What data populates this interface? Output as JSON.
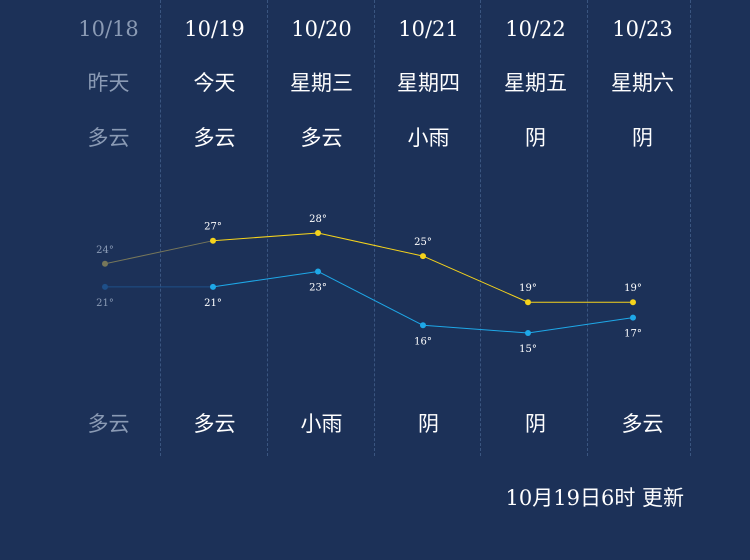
{
  "days": [
    {
      "date": "10/18",
      "weekday": "昨天",
      "day_weather": "多云",
      "night_weather": "多云",
      "high": 24,
      "low": 21,
      "past": true
    },
    {
      "date": "10/19",
      "weekday": "今天",
      "day_weather": "多云",
      "night_weather": "多云",
      "high": 27,
      "low": 21,
      "past": false
    },
    {
      "date": "10/20",
      "weekday": "星期三",
      "day_weather": "多云",
      "night_weather": "小雨",
      "high": 28,
      "low": 23,
      "past": false
    },
    {
      "date": "10/21",
      "weekday": "星期四",
      "day_weather": "小雨",
      "night_weather": "阴",
      "high": 25,
      "low": 16,
      "past": false
    },
    {
      "date": "10/22",
      "weekday": "星期五",
      "day_weather": "阴",
      "night_weather": "阴",
      "high": 19,
      "low": 15,
      "past": false
    },
    {
      "date": "10/23",
      "weekday": "星期六",
      "day_weather": "阴",
      "night_weather": "多云",
      "high": 19,
      "low": 17,
      "past": false
    }
  ],
  "degree_symbol": "°",
  "update_time": "10月19日6时 更新",
  "colors": {
    "background": "#1c3158",
    "high_line": "#f5d31c",
    "low_line": "#1ea8e8",
    "past_high": "#77775a",
    "past_low": "#1e4f88",
    "past_text": "#8a9ab4",
    "label": "#ffffff"
  }
}
